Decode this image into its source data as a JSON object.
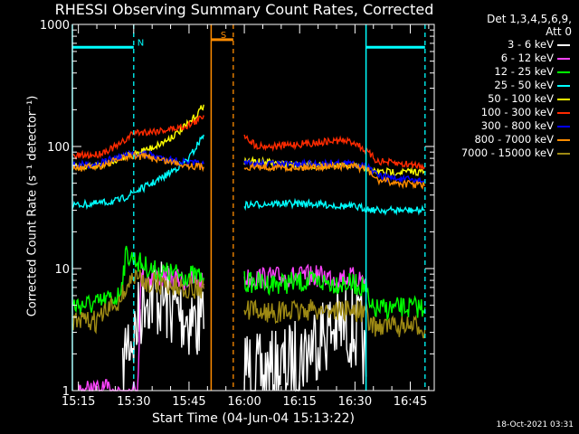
{
  "title": "RHESSI Observing Summary Count Rates, Corrected",
  "detectors": "Det 1,3,4,5,6,9,",
  "attenuator": "Att 0",
  "xlabel": "Start Time (04-Jun-04 15:13:22)",
  "ylabel": "Corrected Count Rate (s⁻¹ detector⁻¹)",
  "date_stamp": "18-Oct-2021 03:31",
  "chart_data": {
    "type": "line",
    "x_unit": "UT time (04-Jun-04)",
    "xlim": [
      "15:13:22",
      "16:51:30"
    ],
    "xticks": [
      "15:15",
      "15:30",
      "15:45",
      "16:00",
      "16:15",
      "16:30",
      "16:45"
    ],
    "y_scale": "log",
    "ylim": [
      1,
      1000
    ],
    "yticks": [
      "1",
      "10",
      "100",
      "1000"
    ],
    "grid": false,
    "legend_position": "top-right",
    "series": [
      {
        "name": "3 - 6 keV",
        "color": "#ffffff",
        "segments": [
          {
            "x": [
              "15:27",
              "15:28",
              "15:30",
              "15:31",
              "15:33",
              "15:36",
              "15:39",
              "15:42",
              "15:45",
              "15:48",
              "15:49"
            ],
            "y": [
              1,
              2.6,
              2.8,
              3.5,
              6.5,
              6.0,
              5.2,
              4.5,
              4.0,
              3.5,
              3.2
            ]
          },
          {
            "x": [
              "16:00",
              "16:01",
              "16:04",
              "16:08",
              "16:12",
              "16:16",
              "16:20",
              "16:24",
              "16:28",
              "16:32",
              "16:33"
            ],
            "y": [
              1.8,
              1.5,
              1.3,
              1.4,
              1.6,
              2.0,
              2.8,
              3.2,
              3.4,
              2.8,
              1.3
            ]
          }
        ]
      },
      {
        "name": "6 - 12 keV",
        "color": "#ff44ff",
        "segments": [
          {
            "x": [
              "15:15",
              "15:31",
              "15:32",
              "15:36",
              "15:40",
              "15:44",
              "15:48",
              "15:49"
            ],
            "y": [
              1,
              1,
              8.3,
              8.6,
              8.2,
              8.0,
              7.8,
              7.5
            ]
          },
          {
            "x": [
              "16:00",
              "16:05",
              "16:10",
              "16:15",
              "16:20",
              "16:25",
              "16:30",
              "16:33"
            ],
            "y": [
              8.3,
              8.4,
              8.5,
              8.6,
              8.7,
              8.5,
              8.4,
              8.2
            ]
          }
        ]
      },
      {
        "name": "12 - 25 keV",
        "color": "#00ff00",
        "segments": [
          {
            "x": [
              "15:13:22",
              "15:20",
              "15:26",
              "15:28",
              "15:30",
              "15:33",
              "15:36",
              "15:40",
              "15:44",
              "15:48",
              "15:49"
            ],
            "y": [
              5.0,
              5.1,
              6.0,
              13,
              12,
              10.5,
              9.5,
              9.2,
              8.8,
              8.6,
              8.4
            ]
          },
          {
            "x": [
              "16:00",
              "16:05",
              "16:10",
              "16:15",
              "16:20",
              "16:25",
              "16:30",
              "16:33",
              "16:34",
              "16:40",
              "16:45",
              "16:49"
            ],
            "y": [
              7.8,
              7.6,
              7.6,
              7.7,
              7.8,
              7.6,
              7.4,
              7.0,
              4.6,
              4.7,
              4.8,
              4.8
            ]
          }
        ]
      },
      {
        "name": "25 - 50 keV",
        "color": "#00ffff",
        "segments": [
          {
            "x": [
              "15:13:22",
              "15:20",
              "15:26",
              "15:30",
              "15:34",
              "15:38",
              "15:42",
              "15:45",
              "15:47",
              "15:49"
            ],
            "y": [
              33,
              34,
              36,
              42,
              48,
              56,
              68,
              80,
              100,
              125
            ]
          },
          {
            "x": [
              "16:00",
              "16:06",
              "16:12",
              "16:18",
              "16:24",
              "16:30",
              "16:33",
              "16:36",
              "16:42",
              "16:49"
            ],
            "y": [
              33,
              34,
              34,
              34,
              33,
              32,
              31,
              30,
              30,
              30
            ]
          }
        ]
      },
      {
        "name": "50 - 100 keV",
        "color": "#ffff00",
        "segments": [
          {
            "x": [
              "15:13:22",
              "15:20",
              "15:26",
              "15:30",
              "15:34",
              "15:38",
              "15:42",
              "15:45",
              "15:47",
              "15:49"
            ],
            "y": [
              68,
              70,
              78,
              88,
              95,
              108,
              130,
              155,
              180,
              220
            ]
          },
          {
            "x": [
              "16:00",
              "16:06",
              "16:12",
              "16:18",
              "16:24",
              "16:30",
              "16:33",
              "16:36",
              "16:42",
              "16:49"
            ],
            "y": [
              76,
              74,
              72,
              70,
              70,
              68,
              66,
              62,
              62,
              62
            ]
          }
        ]
      },
      {
        "name": "100 - 300 keV",
        "color": "#ff2a00",
        "segments": [
          {
            "x": [
              "15:13:22",
              "15:20",
              "15:26",
              "15:30",
              "15:34",
              "15:38",
              "15:42",
              "15:45",
              "15:47",
              "15:49"
            ],
            "y": [
              83,
              86,
              102,
              130,
              132,
              136,
              142,
              150,
              160,
              180
            ]
          },
          {
            "x": [
              "16:00",
              "16:03",
              "16:08",
              "16:14",
              "16:20",
              "16:26",
              "16:30",
              "16:33",
              "16:36",
              "16:42",
              "16:49"
            ],
            "y": [
              125,
              102,
              100,
              104,
              108,
              112,
              108,
              92,
              76,
              72,
              70
            ]
          }
        ]
      },
      {
        "name": "300 - 800 keV",
        "color": "#0000ff",
        "segments": [
          {
            "x": [
              "15:13:22",
              "15:20",
              "15:26",
              "15:30",
              "15:34",
              "15:38",
              "15:42",
              "15:45",
              "15:49"
            ],
            "y": [
              70,
              72,
              82,
              87,
              86,
              80,
              76,
              73,
              72
            ]
          },
          {
            "x": [
              "16:00",
              "16:06",
              "16:12",
              "16:18",
              "16:24",
              "16:30",
              "16:33",
              "16:36",
              "16:42",
              "16:49"
            ],
            "y": [
              72,
              72,
              71,
              72,
              73,
              72,
              70,
              58,
              54,
              52
            ]
          }
        ]
      },
      {
        "name": "800 - 7000 keV",
        "color": "#ff8c00",
        "segments": [
          {
            "x": [
              "15:13:22",
              "15:20",
              "15:26",
              "15:30",
              "15:34",
              "15:38",
              "15:42",
              "15:45",
              "15:49"
            ],
            "y": [
              66,
              68,
              78,
              84,
              82,
              77,
              73,
              70,
              68
            ]
          },
          {
            "x": [
              "16:00",
              "16:06",
              "16:12",
              "16:18",
              "16:24",
              "16:30",
              "16:33",
              "16:36",
              "16:42",
              "16:49"
            ],
            "y": [
              68,
              68,
              67,
              68,
              69,
              68,
              66,
              53,
              50,
              48
            ]
          }
        ]
      },
      {
        "name": "7000 - 15000 keV",
        "color": "#9e8a14",
        "segments": [
          {
            "x": [
              "15:13:22",
              "15:20",
              "15:26",
              "15:30",
              "15:33",
              "15:36",
              "15:40",
              "15:44",
              "15:49"
            ],
            "y": [
              3.6,
              3.7,
              5.5,
              8.6,
              7.8,
              7.6,
              7.2,
              7.0,
              6.8
            ]
          },
          {
            "x": [
              "16:00",
              "16:05",
              "16:10",
              "16:15",
              "16:20",
              "16:25",
              "16:30",
              "16:33",
              "16:34",
              "16:40",
              "16:45",
              "16:49"
            ],
            "y": [
              4.5,
              4.4,
              4.4,
              4.5,
              4.6,
              4.6,
              4.5,
              4.4,
              3.4,
              3.4,
              3.3,
              3.3
            ]
          }
        ]
      }
    ],
    "annotations": {
      "night_markers": {
        "color": "#00ffff",
        "label": "N",
        "solid": [
          "15:13:22",
          "16:33"
        ],
        "dashed": [
          "15:30",
          "16:49"
        ],
        "bar_level": 650,
        "bar_spans": [
          [
            "15:13:22",
            "15:30"
          ],
          [
            "16:33",
            "16:49"
          ]
        ]
      },
      "saa_markers": {
        "color": "#ff8c00",
        "label": "S",
        "solid": [
          "15:51"
        ],
        "dashed": [
          "15:57"
        ],
        "bar_level": 750,
        "bar_spans": [
          [
            "15:51",
            "15:57"
          ]
        ]
      }
    }
  }
}
